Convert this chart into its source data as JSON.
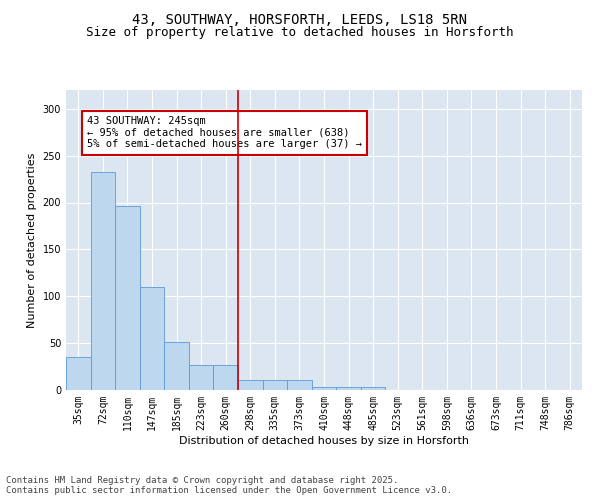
{
  "title_line1": "43, SOUTHWAY, HORSFORTH, LEEDS, LS18 5RN",
  "title_line2": "Size of property relative to detached houses in Horsforth",
  "xlabel": "Distribution of detached houses by size in Horsforth",
  "ylabel": "Number of detached properties",
  "categories": [
    "35sqm",
    "72sqm",
    "110sqm",
    "147sqm",
    "185sqm",
    "223sqm",
    "260sqm",
    "298sqm",
    "335sqm",
    "373sqm",
    "410sqm",
    "448sqm",
    "485sqm",
    "523sqm",
    "561sqm",
    "598sqm",
    "636sqm",
    "673sqm",
    "711sqm",
    "748sqm",
    "786sqm"
  ],
  "values": [
    35,
    233,
    196,
    110,
    51,
    27,
    27,
    11,
    11,
    11,
    3,
    3,
    3,
    0,
    0,
    0,
    0,
    0,
    0,
    0,
    0
  ],
  "bar_color": "#bdd7ee",
  "bar_edge_color": "#5b9bd5",
  "vline_x": 6.5,
  "vline_color": "#cc0000",
  "annotation_text": "43 SOUTHWAY: 245sqm\n← 95% of detached houses are smaller (638)\n5% of semi-detached houses are larger (37) →",
  "annotation_box_color": "#ffffff",
  "annotation_box_edge_color": "#cc0000",
  "ylim": [
    0,
    320
  ],
  "yticks": [
    0,
    50,
    100,
    150,
    200,
    250,
    300
  ],
  "background_color": "#dce6f1",
  "grid_color": "#ffffff",
  "footer": "Contains HM Land Registry data © Crown copyright and database right 2025.\nContains public sector information licensed under the Open Government Licence v3.0.",
  "title_fontsize": 10,
  "subtitle_fontsize": 9,
  "axis_label_fontsize": 8,
  "tick_fontsize": 7,
  "annotation_fontsize": 7.5,
  "footer_fontsize": 6.5
}
